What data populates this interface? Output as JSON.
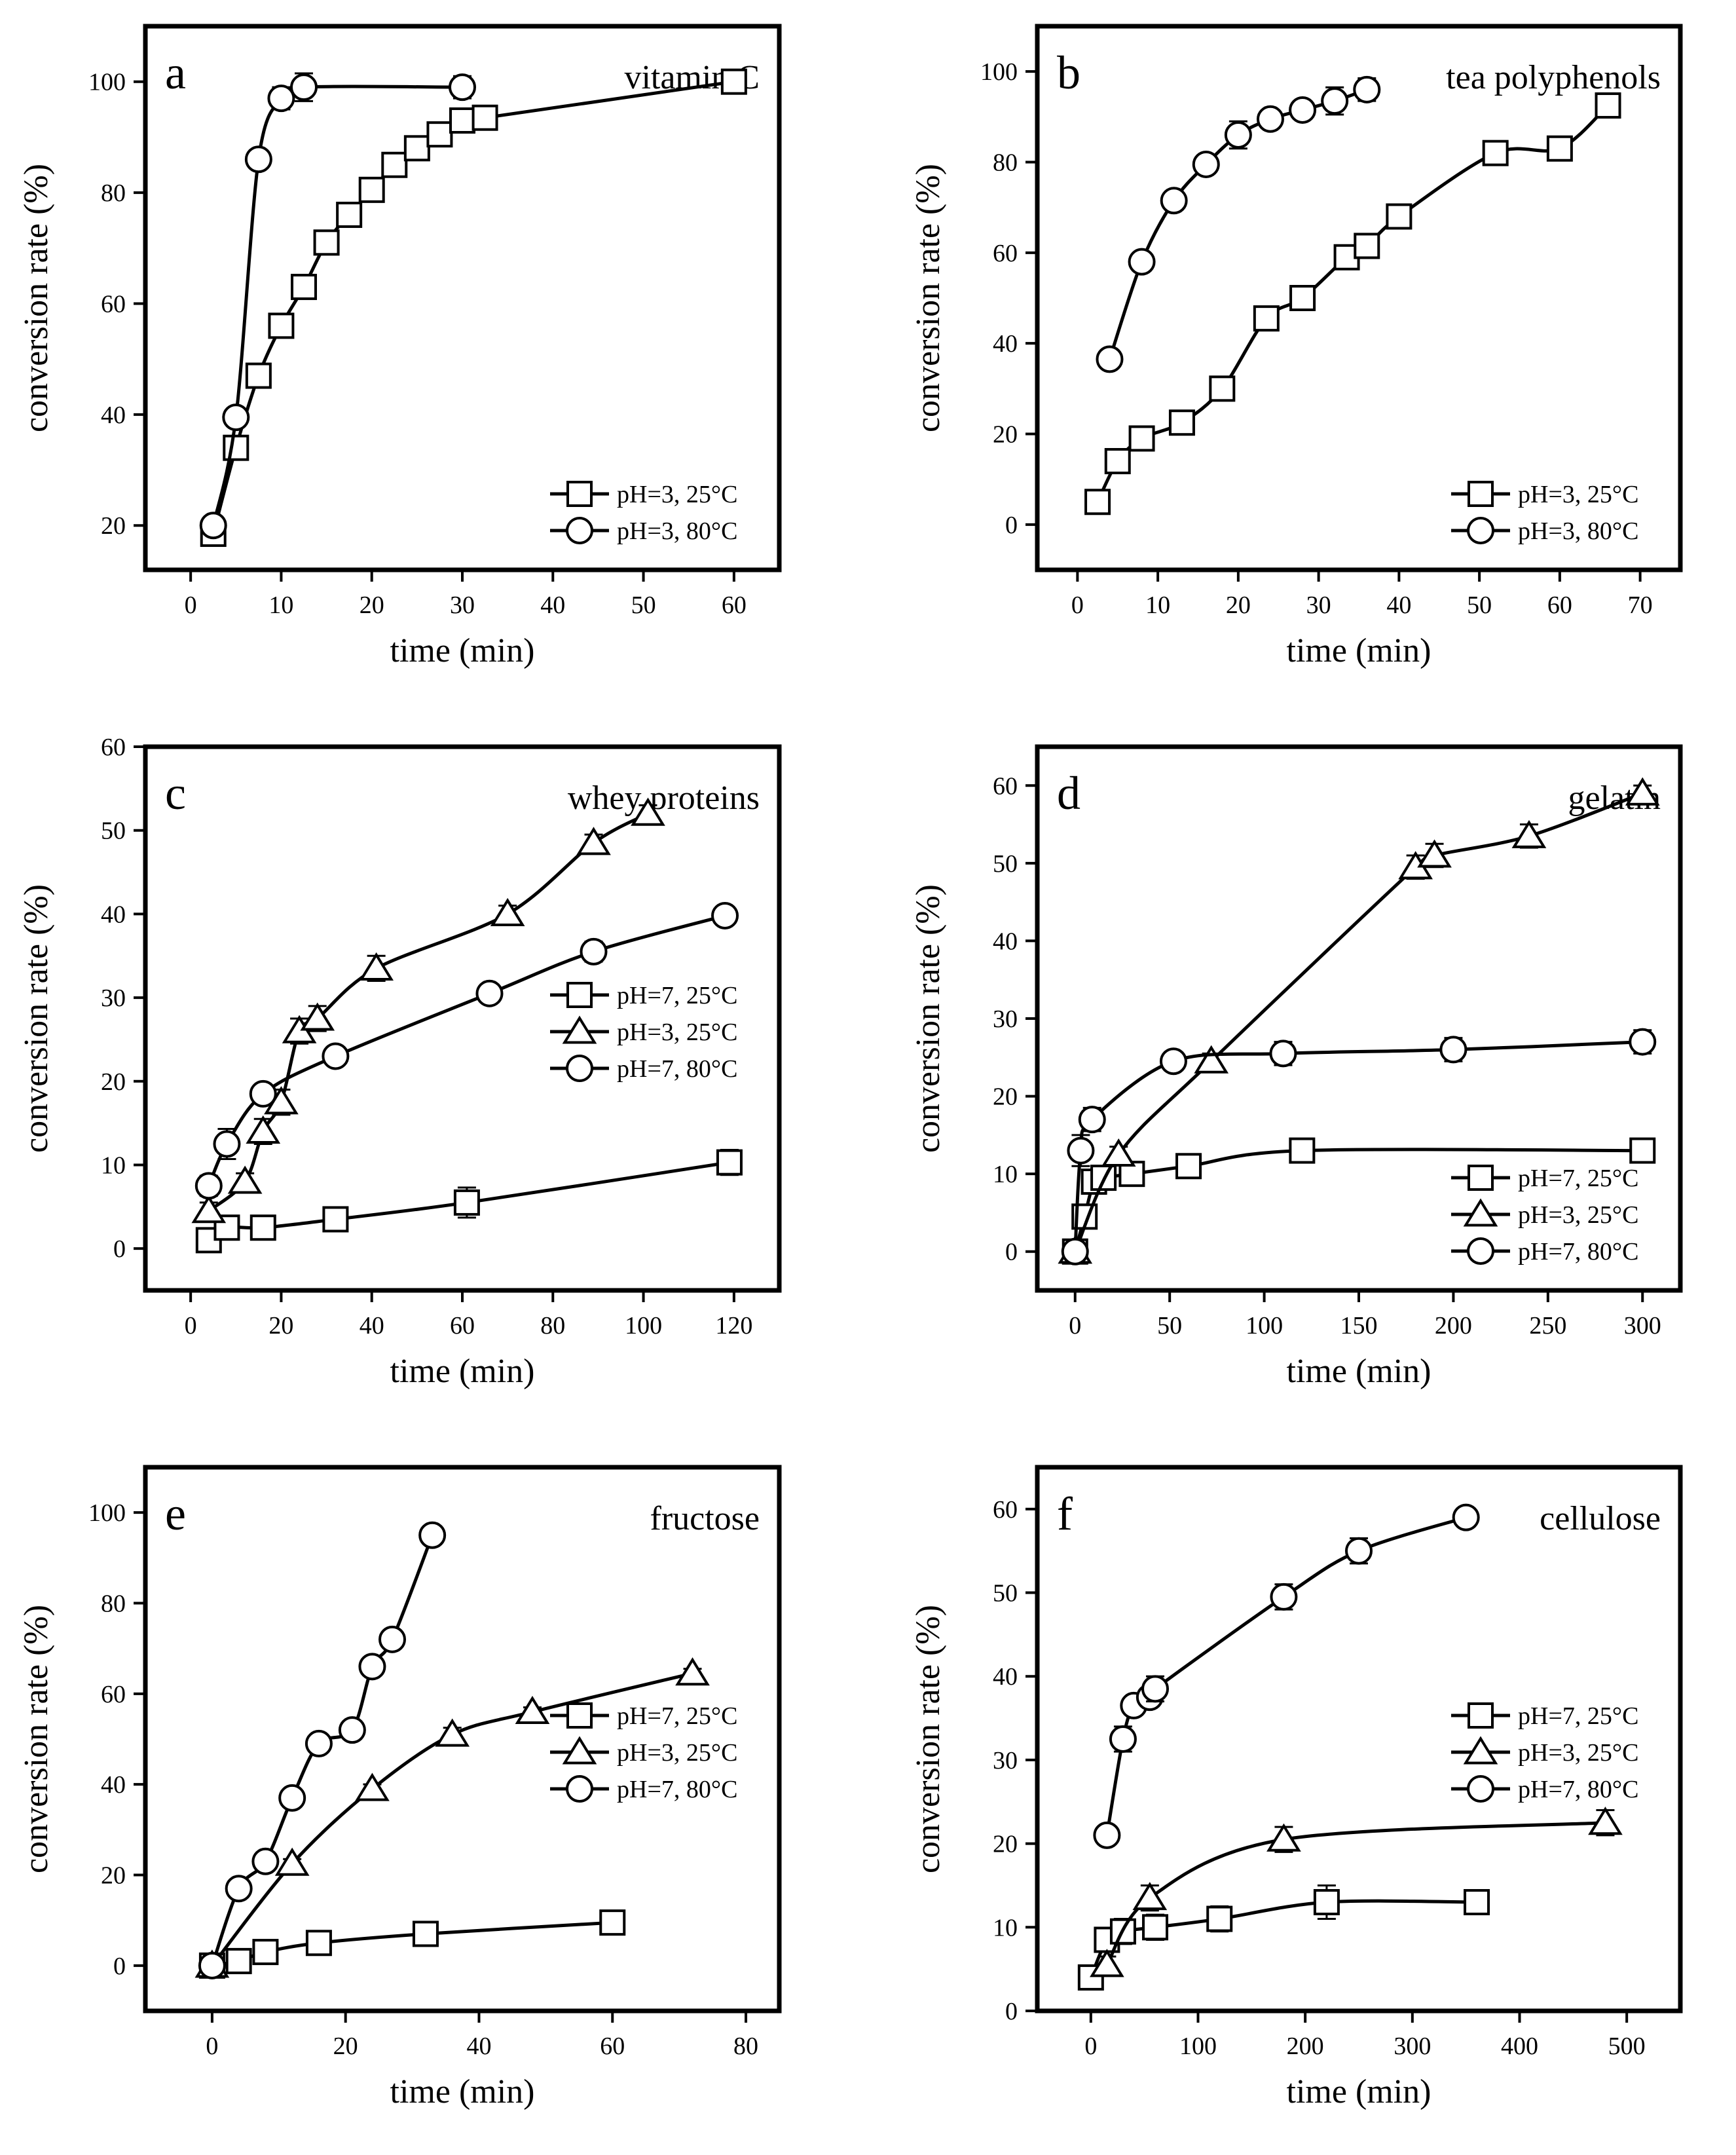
{
  "chart_data": [
    {
      "id": "a",
      "type": "line",
      "panel_label": "a",
      "title": "vitamin C",
      "xlabel": "time (min)",
      "ylabel": "conversion rate (%)",
      "xlim": [
        -5,
        65
      ],
      "ylim": [
        12,
        110
      ],
      "xticks": [
        0,
        10,
        20,
        30,
        40,
        50,
        60
      ],
      "yticks": [
        20,
        40,
        60,
        80,
        100
      ],
      "legend_position": "bottom-right",
      "series": [
        {
          "name": "pH=3, 25°C",
          "marker": "square",
          "x": [
            2.5,
            5,
            7.5,
            10,
            12.5,
            15,
            17.5,
            20,
            22.5,
            25,
            27.5,
            30,
            32.5,
            60
          ],
          "y": [
            18.5,
            34,
            47,
            56,
            63,
            71,
            76,
            80.5,
            85,
            88,
            90.5,
            93,
            93.5,
            100
          ],
          "err": [
            1,
            1,
            1.5,
            1,
            1.5,
            2,
            2,
            1,
            1,
            1,
            1,
            2,
            2,
            1
          ]
        },
        {
          "name": "pH=3, 80°C",
          "marker": "circle",
          "x": [
            2.5,
            5,
            7.5,
            10,
            12.5,
            30
          ],
          "y": [
            20,
            39.5,
            86,
            97,
            99,
            99
          ],
          "err": [
            1,
            1,
            1.5,
            2,
            2.5,
            2
          ]
        }
      ]
    },
    {
      "id": "b",
      "type": "line",
      "panel_label": "b",
      "title": "tea polyphenols",
      "xlabel": "time (min)",
      "ylabel": "conversion rate (%)",
      "xlim": [
        -5,
        75
      ],
      "ylim": [
        -10,
        110
      ],
      "xticks": [
        0,
        10,
        20,
        30,
        40,
        50,
        60,
        70
      ],
      "yticks": [
        0,
        20,
        40,
        60,
        80,
        100
      ],
      "legend_position": "bottom-right",
      "series": [
        {
          "name": "pH=3, 25°C",
          "marker": "square",
          "x": [
            2.5,
            5,
            8,
            13,
            18,
            23.5,
            28,
            33.5,
            36,
            40,
            52,
            60,
            66
          ],
          "y": [
            5,
            14,
            19,
            22.5,
            30,
            45.5,
            50,
            59,
            61.5,
            68,
            82,
            83,
            92.5
          ],
          "err": [
            1,
            1.5,
            1,
            1,
            1.5,
            1.5,
            1.5,
            1.5,
            1.5,
            1.5,
            2,
            1.5,
            2
          ]
        },
        {
          "name": "pH=3, 80°C",
          "marker": "circle",
          "x": [
            4,
            8,
            12,
            16,
            20,
            24,
            28,
            32,
            36
          ],
          "y": [
            36.5,
            58,
            71.5,
            79.5,
            86,
            89.5,
            91.5,
            93.5,
            96
          ],
          "err": [
            2,
            2,
            2,
            2,
            3,
            2,
            2,
            3,
            2.5
          ]
        }
      ]
    },
    {
      "id": "c",
      "type": "line",
      "panel_label": "c",
      "title": "whey proteins",
      "xlabel": "time (min)",
      "ylabel": "conversion rate (%)",
      "xlim": [
        -10,
        130
      ],
      "ylim": [
        -5,
        60
      ],
      "xticks": [
        0,
        20,
        40,
        60,
        80,
        100,
        120
      ],
      "yticks": [
        0,
        10,
        20,
        30,
        40,
        50,
        60
      ],
      "legend_position": "right",
      "series": [
        {
          "name": "pH=7, 25°C",
          "marker": "square",
          "x": [
            4,
            8,
            16,
            32,
            61,
            119
          ],
          "y": [
            1,
            2.5,
            2.5,
            3.5,
            5.5,
            10.3
          ],
          "err": [
            0.7,
            1.2,
            0.7,
            1,
            1.8,
            1.5
          ]
        },
        {
          "name": "pH=3, 25°C",
          "marker": "triangle",
          "x": [
            4,
            12,
            16,
            20,
            24,
            28,
            41,
            70,
            89,
            101
          ],
          "y": [
            4.5,
            8,
            14,
            17.5,
            26,
            27.5,
            33.5,
            40,
            48.5,
            52
          ],
          "err": [
            1,
            1,
            1.5,
            1.5,
            1.5,
            1.5,
            1.5,
            1,
            1,
            1
          ]
        },
        {
          "name": "pH=7, 80°C",
          "marker": "circle",
          "x": [
            4,
            8,
            16,
            32,
            66,
            89,
            118
          ],
          "y": [
            7.5,
            12.5,
            18.5,
            23,
            30.5,
            35.5,
            39.8
          ],
          "err": [
            1.2,
            1.8,
            1,
            1,
            1,
            1.2,
            1
          ]
        }
      ]
    },
    {
      "id": "d",
      "type": "line",
      "panel_label": "d",
      "title": "gelatin",
      "xlabel": "time (min)",
      "ylabel": "conversion rate (%)",
      "xlim": [
        -20,
        320
      ],
      "ylim": [
        -5,
        65
      ],
      "xticks": [
        0,
        50,
        100,
        150,
        200,
        250,
        300
      ],
      "yticks": [
        0,
        10,
        20,
        30,
        40,
        50,
        60
      ],
      "legend_position": "bottom-right",
      "series": [
        {
          "name": "pH=7, 25°C",
          "marker": "square",
          "x": [
            0,
            5,
            10,
            15,
            30,
            60,
            120,
            300
          ],
          "y": [
            0,
            4.5,
            9,
            9.5,
            10,
            11,
            13,
            13
          ],
          "err": [
            0.5,
            1,
            1,
            1,
            1,
            1,
            1,
            1
          ]
        },
        {
          "name": "pH=3, 25°C",
          "marker": "triangle",
          "x": [
            0,
            23,
            72,
            180,
            190,
            240,
            300
          ],
          "y": [
            0,
            12.5,
            24.5,
            49.5,
            51,
            53.5,
            59
          ],
          "err": [
            0.5,
            1,
            1,
            1.5,
            1.5,
            1.5,
            1
          ]
        },
        {
          "name": "pH=7, 80°C",
          "marker": "circle",
          "x": [
            0,
            3,
            9,
            52,
            110,
            200,
            300
          ],
          "y": [
            0,
            13,
            17,
            24.5,
            25.5,
            26,
            27
          ],
          "err": [
            0.5,
            2,
            1.5,
            1,
            1.5,
            1.5,
            1.5
          ]
        }
      ]
    },
    {
      "id": "e",
      "type": "line",
      "panel_label": "e",
      "title": "fructose",
      "xlabel": "time (min)",
      "ylabel": "conversion rate (%)",
      "xlim": [
        -10,
        85
      ],
      "ylim": [
        -10,
        110
      ],
      "xticks": [
        0,
        20,
        40,
        60,
        80
      ],
      "yticks": [
        0,
        20,
        40,
        60,
        80,
        100
      ],
      "legend_position": "right",
      "series": [
        {
          "name": "pH=7, 25°C",
          "marker": "square",
          "x": [
            0,
            4,
            8,
            16,
            32,
            60
          ],
          "y": [
            0,
            1,
            3,
            5,
            7,
            9.5
          ],
          "err": [
            1,
            1,
            1,
            1,
            1,
            1.5
          ]
        },
        {
          "name": "pH=3, 25°C",
          "marker": "triangle",
          "x": [
            0,
            12,
            24,
            36,
            48,
            72
          ],
          "y": [
            0,
            22.5,
            39,
            51,
            56,
            64.5
          ],
          "err": [
            1,
            1,
            1,
            1.5,
            1,
            1
          ]
        },
        {
          "name": "pH=7, 80°C",
          "marker": "circle",
          "x": [
            0,
            4,
            8,
            12,
            16,
            21,
            24,
            27,
            33
          ],
          "y": [
            0,
            17,
            23,
            37,
            49,
            52,
            66,
            72,
            95
          ],
          "err": [
            1,
            1.5,
            1.5,
            1.5,
            1.5,
            2,
            1.5,
            1.5,
            1.5
          ]
        }
      ]
    },
    {
      "id": "f",
      "type": "line",
      "panel_label": "f",
      "title": "cellulose",
      "xlabel": "time (min)",
      "ylabel": "conversion rate (%)",
      "xlim": [
        -50,
        550
      ],
      "ylim": [
        0,
        65
      ],
      "xticks": [
        0,
        100,
        200,
        300,
        400,
        500
      ],
      "yticks": [
        0,
        10,
        20,
        30,
        40,
        50,
        60
      ],
      "legend_position": "right",
      "series": [
        {
          "name": "pH=7, 25°C",
          "marker": "square",
          "x": [
            0,
            15,
            30,
            60,
            120,
            220,
            360
          ],
          "y": [
            4,
            8.5,
            9.5,
            10,
            11,
            13,
            13
          ],
          "err": [
            0.5,
            1,
            1.5,
            1.5,
            1.5,
            2,
            0.8
          ]
        },
        {
          "name": "pH=3, 25°C",
          "marker": "triangle",
          "x": [
            15,
            55,
            180,
            480
          ],
          "y": [
            5.5,
            13.5,
            20.5,
            22.5
          ],
          "err": [
            1,
            1.5,
            1.5,
            1.5
          ]
        },
        {
          "name": "pH=7, 80°C",
          "marker": "circle",
          "x": [
            15,
            30,
            40,
            55,
            60,
            180,
            250,
            350
          ],
          "y": [
            21,
            32.5,
            36.5,
            37.5,
            38.5,
            49.5,
            55,
            59
          ],
          "err": [
            1,
            1.5,
            1,
            1,
            1.5,
            1.5,
            1.5,
            1
          ]
        }
      ]
    }
  ]
}
